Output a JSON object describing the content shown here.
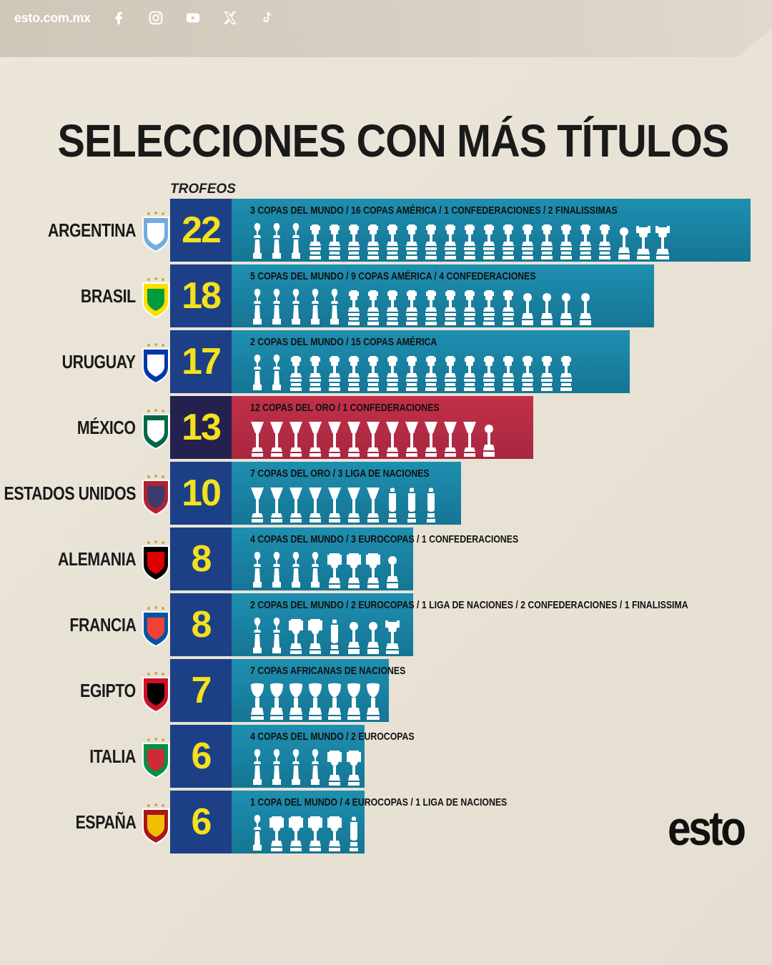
{
  "header": {
    "site": "esto.com.mx",
    "social_icons": [
      "facebook-icon",
      "instagram-icon",
      "youtube-icon",
      "x-icon",
      "tiktok-icon"
    ]
  },
  "title": "SELECCIONES CON MÁS TÍTULOS",
  "logo": "esto",
  "colors": {
    "bar": "#1e8fb0",
    "bar_highlight": "#c13048",
    "count_box": "#1d3f86",
    "count_box_highlight": "#24214f",
    "count_text": "#f4e11d",
    "trophy": "#ffffff"
  },
  "chart_data": {
    "type": "bar",
    "orientation": "horizontal",
    "unit_label": "TROFEOS",
    "xlim": [
      0,
      22
    ],
    "categories": [
      "ARGENTINA",
      "BRASIL",
      "URUGUAY",
      "MÉXICO",
      "ESTADOS UNIDOS",
      "ALEMANIA",
      "FRANCIA",
      "EGIPTO",
      "ITALIA",
      "ESPAÑA"
    ],
    "values": [
      22,
      18,
      17,
      13,
      10,
      8,
      8,
      7,
      6,
      6
    ],
    "value_labels": [
      "22",
      "18",
      "17",
      "13",
      "10",
      "8",
      "8",
      "7",
      "6",
      "6"
    ],
    "breakdown_labels": [
      "3 COPAS DEL MUNDO / 16 COPAS AMÉRICA / 1 CONFEDERACIONES / 2 FINALISSIMAS",
      "5 COPAS DEL MUNDO / 9 COPAS AMÉRICA / 4 CONFEDERACIONES",
      "2 COPAS DEL MUNDO / 15 COPAS AMÉRICA",
      "12 COPAS DEL ORO / 1 CONFEDERACIONES",
      "7 COPAS DEL ORO / 3 LIGA DE NACIONES",
      "4 COPAS DEL MUNDO / 3 EUROCOPAS / 1 CONFEDERACIONES",
      "2 COPAS DEL MUNDO / 2 EUROCOPAS / 1 LIGA DE NACIONES / 2 CONFEDERACIONES / 1 FINALISSIMA",
      "7 COPAS AFRICANAS DE NACIONES",
      "4 COPAS DEL MUNDO / 2 EUROCOPAS",
      "1 COPA DEL MUNDO / 4 EUROCOPAS / 1 LIGA DE NACIONES"
    ],
    "highlighted": "MÉXICO",
    "trophies": [
      [
        [
          "mundo",
          3
        ],
        [
          "america",
          16
        ],
        [
          "confed",
          1
        ],
        [
          "finalissima",
          2
        ]
      ],
      [
        [
          "mundo",
          5
        ],
        [
          "america",
          9
        ],
        [
          "confed",
          4
        ]
      ],
      [
        [
          "mundo",
          2
        ],
        [
          "america",
          15
        ]
      ],
      [
        [
          "oro",
          12
        ],
        [
          "confed",
          1
        ]
      ],
      [
        [
          "oro",
          7
        ],
        [
          "naciones",
          3
        ]
      ],
      [
        [
          "mundo",
          4
        ],
        [
          "euro",
          3
        ],
        [
          "confed",
          1
        ]
      ],
      [
        [
          "mundo",
          2
        ],
        [
          "euro",
          2
        ],
        [
          "naciones",
          1
        ],
        [
          "confed",
          2
        ],
        [
          "finalissima",
          1
        ]
      ],
      [
        [
          "africa",
          7
        ]
      ],
      [
        [
          "mundo",
          4
        ],
        [
          "euro",
          2
        ]
      ],
      [
        [
          "mundo",
          1
        ],
        [
          "euro",
          4
        ],
        [
          "naciones",
          1
        ]
      ]
    ]
  }
}
